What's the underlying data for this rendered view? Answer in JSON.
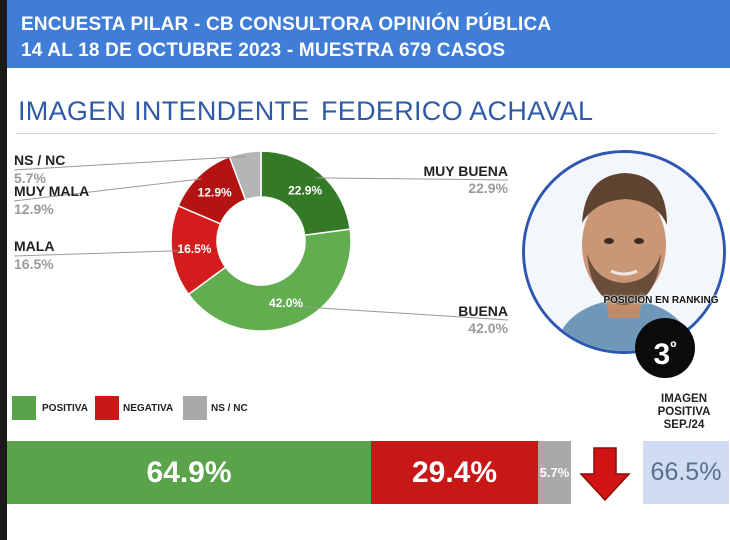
{
  "header": {
    "line1": "ENCUESTA PILAR - CB CONSULTORA OPINIÓN PÚBLICA",
    "line2": "14 AL 18 DE OCTUBRE 2023 - MUESTRA 679 CASOS"
  },
  "title": {
    "left": "IMAGEN INTENDENTE",
    "right": "FEDERICO ACHAVAL"
  },
  "ranking": {
    "label": "POSICIÓN EN RANKING",
    "position": "3",
    "suffix": "º"
  },
  "legend": [
    {
      "label": "POSITIVA",
      "color": "#5aa34a"
    },
    {
      "label": "NEGATIVA",
      "color": "#c81717"
    },
    {
      "label": "NS / NC",
      "color": "#a9a9a9"
    }
  ],
  "summary": {
    "positive": "64.9%",
    "negative": "29.4%",
    "nsnc": "5.7%",
    "trend_icon": "down-arrow-icon"
  },
  "previous": {
    "title_lines": [
      "IMAGEN",
      "POSITIVA",
      "SEP./24"
    ],
    "value": "66.5%"
  },
  "chart_data": {
    "type": "pie",
    "donut": true,
    "categories": [
      "MUY BUENA",
      "BUENA",
      "MALA",
      "MUY MALA",
      "NS / NC"
    ],
    "values": [
      22.9,
      42.0,
      16.5,
      12.9,
      5.7
    ],
    "labels": [
      "22.9%",
      "42.0%",
      "16.5%",
      "12.9%",
      "5.7%"
    ],
    "colors": [
      "#347a26",
      "#62ad50",
      "#d51c1c",
      "#b51212",
      "#b5b5b5"
    ]
  }
}
